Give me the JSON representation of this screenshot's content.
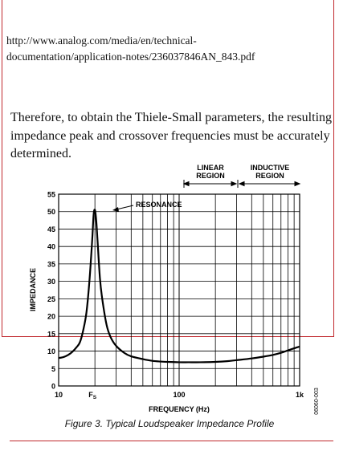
{
  "document": {
    "url_lines": [
      "http://www.analog.com/media/en/technical-",
      "documentation/application-notes/236037846AN_843.pdf"
    ],
    "paragraph_lines": [
      "Therefore, to obtain the Thiele-Small parameters, the resulting",
      "impedance peak and crossover frequencies must be accurately",
      "determined."
    ],
    "caption": "Figure 3. Typical Loudspeaker Impedance Profile",
    "accent_color": "#c0282d"
  },
  "chart_data": {
    "type": "line",
    "xlabel": "FREQUENCY (Hz)",
    "ylabel": "IMPEDANCE",
    "xscale": "log",
    "xlim": [
      10,
      1000
    ],
    "ylim": [
      0,
      55
    ],
    "yticks": [
      "0",
      "5",
      "10",
      "15",
      "20",
      "25",
      "30",
      "35",
      "40",
      "45",
      "50",
      "55"
    ],
    "xticks": [
      {
        "value": 10,
        "label": "10"
      },
      {
        "value": 100,
        "label": "100"
      },
      {
        "value": 1000,
        "label": "1k"
      }
    ],
    "fs_label": {
      "value": 20,
      "text": "F",
      "subscript": "S"
    },
    "grid": true,
    "series": [
      {
        "x": [
          10,
          11,
          12,
          13,
          14,
          15,
          16,
          17,
          18,
          19,
          19.5,
          20,
          20.5,
          21,
          22,
          23,
          25,
          27,
          30,
          35,
          40,
          50,
          60,
          70,
          80,
          100,
          120,
          150,
          200,
          250,
          300,
          400,
          500,
          600,
          700,
          800,
          900,
          1000
        ],
        "y": [
          8,
          8.3,
          8.9,
          9.8,
          11,
          12.5,
          16,
          21,
          30,
          42,
          49,
          50.5,
          47.5,
          42,
          31,
          25,
          17.5,
          14,
          11.5,
          9.5,
          8.5,
          7.7,
          7.2,
          7,
          6.9,
          6.8,
          6.8,
          6.8,
          6.9,
          7.1,
          7.4,
          7.9,
          8.4,
          8.9,
          9.5,
          10.2,
          10.8,
          11.3
        ]
      }
    ],
    "annotations": [
      {
        "text": "RESONANCE",
        "x": 20,
        "y": 50.5
      },
      {
        "text": "LINEAR REGION",
        "x_start": 100,
        "x_end": 300
      },
      {
        "text": "INDUCTIVE REGION",
        "x_start": 300,
        "x_end": 1000
      }
    ],
    "figure_id": "06060-003"
  }
}
